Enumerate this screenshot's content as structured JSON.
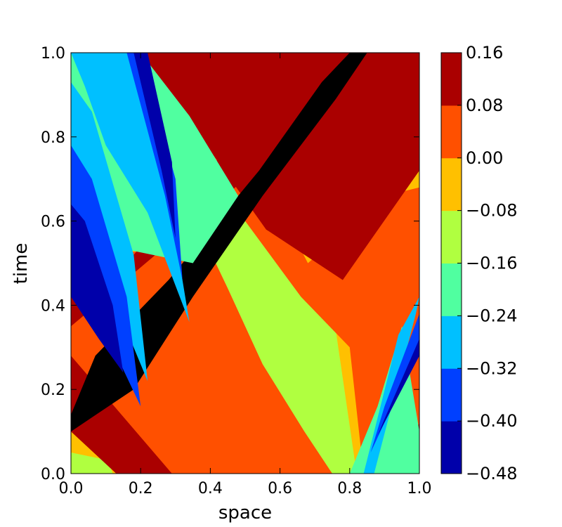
{
  "chart_data": {
    "type": "heatmap",
    "title": "",
    "xlabel": "space",
    "ylabel": "time",
    "xlim": [
      0.0,
      1.0
    ],
    "ylim": [
      0.0,
      1.0
    ],
    "xticks": [
      "0.0",
      "0.2",
      "0.4",
      "0.6",
      "0.8",
      "1.0"
    ],
    "yticks": [
      "0.0",
      "0.2",
      "0.4",
      "0.6",
      "0.8",
      "1.0"
    ],
    "colorbar": {
      "levels": [
        -0.48,
        -0.4,
        -0.32,
        -0.24,
        -0.16,
        -0.08,
        0.0,
        0.08,
        0.16
      ],
      "tick_labels": [
        "−0.48",
        "−0.40",
        "−0.32",
        "−0.24",
        "−0.16",
        "−0.08",
        "0.00",
        "0.08",
        "0.16"
      ],
      "colors": [
        "#0000aa",
        "#0040ff",
        "#00c0ff",
        "#50ffa0",
        "#b0ff40",
        "#ffc000",
        "#ff5000",
        "#aa0000"
      ]
    },
    "description_of_field": "filled contour of a travelling wave; bands run diagonally from lower-left to upper-right",
    "contours": [
      {
        "level_index": 4,
        "points": [
          [
            0.0,
            0.0
          ],
          [
            1.0,
            0.0
          ],
          [
            1.0,
            1.0
          ],
          [
            0.0,
            1.0
          ]
        ]
      },
      {
        "level_index": 5,
        "points": [
          [
            0.0,
            0.05
          ],
          [
            0.29,
            0.0
          ],
          [
            0.74,
            0.0
          ],
          [
            0.6,
            0.18
          ],
          [
            0.45,
            0.35
          ],
          [
            0.3,
            0.55
          ],
          [
            0.12,
            0.88
          ],
          [
            0.06,
            1.0
          ],
          [
            0.0,
            1.0
          ]
        ]
      },
      {
        "level_index": 5,
        "points": [
          [
            0.3,
            1.0
          ],
          [
            0.58,
            0.66
          ],
          [
            0.76,
            0.34
          ],
          [
            0.82,
            0.0
          ],
          [
            1.0,
            0.0
          ],
          [
            1.0,
            0.72
          ],
          [
            0.84,
            0.88
          ],
          [
            0.74,
            1.0
          ]
        ]
      },
      {
        "level_index": 5,
        "points": [
          [
            0.64,
            0.47
          ],
          [
            0.8,
            0.41
          ],
          [
            1.0,
            0.68
          ],
          [
            1.0,
            0.71
          ],
          [
            0.8,
            0.58
          ],
          [
            0.66,
            0.48
          ]
        ]
      },
      {
        "level_index": 5,
        "points": [
          [
            0.0,
            0.28
          ],
          [
            0.12,
            0.0
          ],
          [
            0.33,
            0.0
          ],
          [
            0.2,
            0.22
          ],
          [
            0.0,
            0.42
          ]
        ]
      },
      {
        "level_index": 6,
        "points": [
          [
            0.0,
            0.23
          ],
          [
            0.29,
            0.0
          ],
          [
            0.6,
            0.0
          ],
          [
            0.75,
            0.0
          ],
          [
            0.67,
            0.1
          ],
          [
            0.55,
            0.26
          ],
          [
            0.45,
            0.44
          ],
          [
            0.22,
            0.84
          ],
          [
            0.15,
            1.0
          ],
          [
            0.0,
            1.0
          ],
          [
            0.0,
            0.82
          ],
          [
            0.15,
            0.78
          ],
          [
            0.38,
            0.55
          ],
          [
            0.12,
            0.52
          ],
          [
            0.0,
            0.56
          ]
        ]
      },
      {
        "level_index": 6,
        "points": [
          [
            0.22,
            1.0
          ],
          [
            0.5,
            0.6
          ],
          [
            0.66,
            0.42
          ],
          [
            0.8,
            0.3
          ],
          [
            0.84,
            0.0
          ],
          [
            1.0,
            0.0
          ],
          [
            1.0,
            0.68
          ],
          [
            0.9,
            0.66
          ],
          [
            0.68,
            0.5
          ],
          [
            0.58,
            0.66
          ],
          [
            0.42,
            0.85
          ],
          [
            0.36,
            1.0
          ]
        ]
      },
      {
        "level_index": 7,
        "points": [
          [
            0.0,
            0.1
          ],
          [
            0.13,
            0.0
          ],
          [
            0.29,
            0.0
          ],
          [
            0.0,
            0.28
          ]
        ]
      },
      {
        "level_index": 7,
        "points": [
          [
            0.0,
            0.35
          ],
          [
            0.3,
            0.56
          ],
          [
            0.5,
            0.7
          ],
          [
            0.7,
            0.86
          ],
          [
            0.92,
            1.0
          ],
          [
            0.74,
            1.0
          ],
          [
            0.5,
            0.82
          ],
          [
            0.18,
            0.52
          ],
          [
            0.0,
            0.44
          ]
        ]
      },
      {
        "level_index": 7,
        "points": [
          [
            0.2,
            1.0
          ],
          [
            0.56,
            0.58
          ],
          [
            0.78,
            0.46
          ],
          [
            1.0,
            0.72
          ],
          [
            1.0,
            1.0
          ]
        ]
      },
      {
        "level_index": 7,
        "points": [
          [
            0.85,
            0.0
          ],
          [
            0.92,
            0.0
          ],
          [
            1.0,
            0.12
          ],
          [
            1.0,
            0.03
          ]
        ]
      },
      {
        "level_index": 8,
        "points": [
          [
            0.0,
            0.14
          ],
          [
            0.07,
            0.28
          ],
          [
            0.28,
            0.46
          ],
          [
            0.54,
            0.72
          ],
          [
            0.72,
            0.93
          ],
          [
            0.8,
            1.0
          ],
          [
            0.85,
            1.0
          ],
          [
            0.76,
            0.89
          ],
          [
            0.55,
            0.66
          ],
          [
            0.35,
            0.42
          ],
          [
            0.18,
            0.2
          ],
          [
            0.0,
            0.1
          ]
        ]
      },
      {
        "level_index": 8,
        "points": [
          [
            0.89,
            0.0
          ],
          [
            0.97,
            0.0
          ],
          [
            1.0,
            0.04
          ],
          [
            1.0,
            0.08
          ]
        ]
      },
      {
        "level_index": 3,
        "points": [
          [
            0.0,
            0.56
          ],
          [
            0.35,
            0.5
          ],
          [
            0.48,
            0.66
          ],
          [
            0.34,
            0.85
          ],
          [
            0.2,
            1.0
          ],
          [
            0.0,
            1.0
          ]
        ]
      },
      {
        "level_index": 3,
        "points": [
          [
            0.82,
            0.0
          ],
          [
            1.0,
            0.0
          ],
          [
            1.0,
            0.1
          ],
          [
            0.95,
            0.35
          ],
          [
            0.88,
            0.16
          ],
          [
            0.8,
            0.0
          ]
        ]
      },
      {
        "level_index": 2,
        "points": [
          [
            0.0,
            0.64
          ],
          [
            0.14,
            0.38
          ],
          [
            0.22,
            0.22
          ],
          [
            0.18,
            0.52
          ],
          [
            0.06,
            0.86
          ],
          [
            0.0,
            0.93
          ]
        ]
      },
      {
        "level_index": 2,
        "points": [
          [
            0.0,
            1.0
          ],
          [
            0.04,
            0.92
          ],
          [
            0.1,
            0.78
          ],
          [
            0.22,
            0.62
          ],
          [
            0.34,
            0.36
          ],
          [
            0.28,
            0.66
          ],
          [
            0.16,
            1.0
          ]
        ]
      },
      {
        "level_index": 2,
        "points": [
          [
            0.84,
            0.0
          ],
          [
            0.87,
            0.0
          ],
          [
            0.99,
            0.38
          ],
          [
            1.0,
            0.42
          ],
          [
            0.94,
            0.33
          ]
        ]
      },
      {
        "level_index": 1,
        "points": [
          [
            0.0,
            0.5
          ],
          [
            0.12,
            0.3
          ],
          [
            0.2,
            0.16
          ],
          [
            0.16,
            0.42
          ],
          [
            0.06,
            0.7
          ],
          [
            0.0,
            0.78
          ]
        ]
      },
      {
        "level_index": 1,
        "points": [
          [
            0.16,
            1.0
          ],
          [
            0.27,
            0.66
          ],
          [
            0.32,
            0.46
          ],
          [
            0.3,
            0.7
          ],
          [
            0.2,
            1.0
          ]
        ]
      },
      {
        "level_index": 1,
        "points": [
          [
            0.86,
            0.05
          ],
          [
            1.0,
            0.3
          ],
          [
            1.0,
            0.38
          ],
          [
            0.9,
            0.16
          ]
        ]
      },
      {
        "level_index": 0,
        "points": [
          [
            0.0,
            0.42
          ],
          [
            0.08,
            0.32
          ],
          [
            0.15,
            0.24
          ],
          [
            0.12,
            0.4
          ],
          [
            0.04,
            0.6
          ],
          [
            0.0,
            0.64
          ]
        ]
      },
      {
        "level_index": 0,
        "points": [
          [
            0.18,
            1.0
          ],
          [
            0.26,
            0.72
          ],
          [
            0.3,
            0.56
          ],
          [
            0.29,
            0.74
          ],
          [
            0.22,
            1.0
          ]
        ]
      },
      {
        "level_index": 0,
        "points": [
          [
            0.88,
            0.09
          ],
          [
            1.0,
            0.28
          ],
          [
            1.0,
            0.32
          ],
          [
            0.9,
            0.13
          ]
        ]
      }
    ]
  }
}
